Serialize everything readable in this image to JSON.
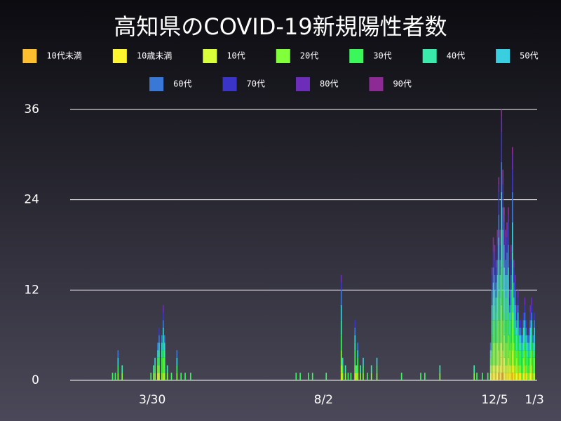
{
  "chart_data": {
    "type": "bar",
    "stacked": true,
    "title": "高知県のCOVID-19新規陽性者数",
    "x": [
      31,
      33,
      35,
      38,
      59,
      61,
      62,
      64,
      65,
      67,
      68,
      69,
      71,
      74,
      78,
      81,
      84,
      88,
      165,
      168,
      174,
      177,
      187,
      198,
      199,
      201,
      203,
      205,
      208,
      209,
      210,
      212,
      214,
      217,
      220,
      224,
      242,
      256,
      259,
      270,
      295,
      297,
      301,
      305,
      307,
      308,
      309,
      310,
      311,
      312,
      313,
      314,
      315,
      316,
      317,
      318,
      319,
      320,
      321,
      322,
      323,
      324,
      325,
      326,
      327,
      328,
      329,
      330,
      331,
      332,
      333,
      334,
      335,
      336,
      337,
      338,
      339
    ],
    "xlim": [
      0,
      341
    ],
    "xticks": [
      {
        "value": 60,
        "label": "3/30"
      },
      {
        "value": 185,
        "label": "8/2"
      },
      {
        "value": 310,
        "label": "12/5"
      },
      {
        "value": 339,
        "label": "1/3"
      }
    ],
    "ylim": [
      0,
      36
    ],
    "yticks": [
      0,
      12,
      24,
      36
    ],
    "grid": true,
    "series": [
      {
        "name": "10代未満",
        "color": "#fdbf2d",
        "values": [
          0,
          0,
          0,
          0,
          0,
          0,
          0,
          0,
          0,
          0,
          0,
          0,
          0,
          0,
          0,
          0,
          0,
          0,
          0,
          0,
          0,
          0,
          0,
          0,
          0,
          0,
          0,
          0,
          0,
          0,
          0,
          0,
          0,
          0,
          0,
          0,
          0,
          0,
          0,
          0,
          0,
          0,
          0,
          0,
          0,
          0,
          0,
          0,
          0,
          0,
          1,
          0,
          1,
          1,
          0,
          0,
          0,
          0,
          0,
          0,
          1,
          0,
          0,
          0,
          0,
          0,
          0,
          0,
          0,
          0,
          0,
          0,
          0,
          0,
          0,
          0,
          0
        ]
      },
      {
        "name": "10歳未満",
        "color": "#fdf52d",
        "values": [
          0,
          0,
          0,
          0,
          0,
          0,
          0,
          0,
          0,
          0,
          0,
          0,
          0,
          0,
          0,
          0,
          0,
          0,
          0,
          0,
          0,
          0,
          0,
          1,
          0,
          0,
          0,
          0,
          1,
          0,
          0,
          0,
          0,
          0,
          0,
          0,
          0,
          0,
          0,
          0,
          0,
          0,
          0,
          0,
          0,
          1,
          1,
          1,
          1,
          1,
          1,
          1,
          2,
          1,
          1,
          1,
          1,
          1,
          1,
          1,
          1,
          1,
          1,
          0,
          1,
          1,
          1,
          0,
          0,
          1,
          1,
          0,
          0,
          0,
          1,
          0,
          0
        ]
      },
      {
        "name": "10代",
        "color": "#d9ff3a",
        "values": [
          0,
          0,
          0,
          0,
          0,
          0,
          0,
          1,
          1,
          0,
          1,
          0,
          0,
          0,
          0,
          0,
          0,
          0,
          0,
          0,
          0,
          0,
          0,
          1,
          0,
          0,
          0,
          0,
          0,
          0,
          1,
          0,
          0,
          0,
          0,
          0,
          0,
          0,
          0,
          0,
          0,
          0,
          0,
          0,
          1,
          1,
          1,
          1,
          1,
          1,
          2,
          1,
          2,
          2,
          2,
          1,
          1,
          2,
          1,
          1,
          2,
          1,
          1,
          1,
          1,
          0,
          0,
          0,
          1,
          1,
          0,
          0,
          1,
          1,
          1,
          0,
          1
        ]
      },
      {
        "name": "20代",
        "color": "#80ff3a",
        "values": [
          0,
          0,
          1,
          1,
          0,
          1,
          1,
          1,
          1,
          1,
          2,
          1,
          1,
          0,
          1,
          0,
          0,
          0,
          0,
          0,
          0,
          0,
          0,
          2,
          1,
          1,
          0,
          0,
          1,
          1,
          1,
          1,
          1,
          0,
          1,
          1,
          0,
          0,
          0,
          1,
          1,
          0,
          0,
          0,
          1,
          2,
          3,
          3,
          3,
          3,
          4,
          3,
          5,
          4,
          3,
          3,
          3,
          3,
          2,
          3,
          5,
          3,
          2,
          2,
          2,
          1,
          1,
          1,
          2,
          2,
          1,
          1,
          1,
          2,
          2,
          1,
          2
        ]
      },
      {
        "name": "30代",
        "color": "#3af75a",
        "values": [
          1,
          1,
          1,
          0,
          1,
          0,
          1,
          1,
          1,
          2,
          1,
          2,
          0,
          1,
          1,
          1,
          1,
          1,
          1,
          1,
          1,
          1,
          1,
          2,
          1,
          0,
          1,
          1,
          2,
          0,
          1,
          0,
          1,
          1,
          0,
          1,
          1,
          1,
          1,
          0,
          0,
          1,
          1,
          1,
          1,
          2,
          3,
          3,
          2,
          3,
          4,
          3,
          5,
          4,
          3,
          3,
          3,
          3,
          2,
          3,
          4,
          2,
          2,
          1,
          2,
          2,
          2,
          2,
          1,
          1,
          2,
          2,
          1,
          1,
          1,
          2,
          1
        ]
      },
      {
        "name": "40代",
        "color": "#3aeaaa",
        "values": [
          0,
          0,
          0,
          1,
          0,
          1,
          0,
          0,
          1,
          1,
          2,
          1,
          1,
          0,
          0,
          0,
          0,
          0,
          0,
          0,
          0,
          0,
          0,
          2,
          0,
          1,
          0,
          0,
          1,
          1,
          0,
          1,
          0,
          0,
          1,
          0,
          0,
          0,
          0,
          1,
          1,
          0,
          0,
          0,
          0,
          2,
          3,
          2,
          2,
          3,
          4,
          3,
          5,
          4,
          3,
          3,
          3,
          3,
          2,
          2,
          4,
          2,
          2,
          2,
          2,
          1,
          1,
          1,
          1,
          2,
          1,
          1,
          1,
          2,
          2,
          1,
          1
        ]
      },
      {
        "name": "50代",
        "color": "#3acfe0",
        "values": [
          0,
          0,
          1,
          0,
          0,
          0,
          1,
          1,
          1,
          1,
          1,
          1,
          0,
          0,
          1,
          0,
          0,
          0,
          0,
          0,
          0,
          0,
          0,
          2,
          1,
          0,
          0,
          0,
          1,
          0,
          1,
          0,
          1,
          0,
          0,
          1,
          0,
          0,
          0,
          0,
          0,
          0,
          0,
          0,
          1,
          2,
          2,
          2,
          2,
          3,
          3,
          3,
          5,
          4,
          3,
          3,
          3,
          3,
          1,
          2,
          4,
          2,
          2,
          1,
          1,
          1,
          1,
          1,
          2,
          1,
          1,
          1,
          1,
          1,
          1,
          1,
          2
        ]
      },
      {
        "name": "60代",
        "color": "#3a78d8",
        "values": [
          0,
          0,
          1,
          0,
          0,
          0,
          0,
          1,
          1,
          1,
          1,
          1,
          0,
          0,
          1,
          0,
          0,
          0,
          0,
          0,
          0,
          0,
          0,
          2,
          0,
          0,
          0,
          0,
          1,
          0,
          1,
          0,
          0,
          0,
          0,
          0,
          0,
          0,
          0,
          0,
          0,
          0,
          0,
          0,
          1,
          2,
          2,
          2,
          2,
          2,
          3,
          2,
          4,
          3,
          3,
          2,
          3,
          3,
          1,
          2,
          4,
          2,
          2,
          1,
          1,
          1,
          1,
          1,
          1,
          1,
          1,
          1,
          1,
          1,
          1,
          1,
          1
        ]
      },
      {
        "name": "70代",
        "color": "#3a35c8",
        "values": [
          0,
          0,
          0,
          0,
          0,
          0,
          0,
          0,
          1,
          0,
          1,
          0,
          0,
          0,
          0,
          0,
          0,
          0,
          0,
          0,
          0,
          0,
          0,
          1,
          0,
          0,
          0,
          0,
          1,
          0,
          0,
          0,
          0,
          0,
          0,
          0,
          0,
          0,
          0,
          0,
          0,
          0,
          0,
          0,
          0,
          2,
          2,
          2,
          2,
          2,
          3,
          2,
          4,
          3,
          3,
          2,
          2,
          3,
          1,
          2,
          3,
          2,
          1,
          1,
          1,
          1,
          1,
          0,
          1,
          1,
          1,
          0,
          1,
          1,
          1,
          0,
          1
        ]
      },
      {
        "name": "80代",
        "color": "#6c2db8",
        "values": [
          0,
          0,
          0,
          0,
          0,
          0,
          0,
          0,
          0,
          0,
          1,
          0,
          0,
          0,
          0,
          0,
          0,
          0,
          0,
          0,
          0,
          0,
          0,
          1,
          0,
          0,
          0,
          0,
          0,
          0,
          0,
          0,
          0,
          0,
          0,
          0,
          0,
          0,
          0,
          0,
          0,
          0,
          0,
          0,
          0,
          1,
          1,
          1,
          1,
          1,
          1,
          1,
          2,
          1,
          1,
          1,
          1,
          1,
          1,
          1,
          2,
          1,
          1,
          1,
          1,
          0,
          0,
          0,
          0,
          1,
          0,
          0,
          0,
          1,
          1,
          0,
          0
        ]
      },
      {
        "name": "90代",
        "color": "#8e2a96",
        "values": [
          0,
          0,
          0,
          0,
          0,
          0,
          0,
          0,
          0,
          0,
          0,
          0,
          0,
          0,
          0,
          0,
          0,
          0,
          0,
          0,
          0,
          0,
          0,
          0,
          0,
          0,
          0,
          0,
          0,
          0,
          0,
          0,
          0,
          0,
          0,
          0,
          0,
          0,
          0,
          0,
          0,
          0,
          0,
          0,
          0,
          0,
          1,
          1,
          0,
          1,
          1,
          1,
          1,
          1,
          1,
          1,
          1,
          1,
          0,
          1,
          1,
          0,
          0,
          0,
          0,
          0,
          0,
          0,
          0,
          0,
          0,
          0,
          0,
          0,
          0,
          0,
          0
        ]
      }
    ]
  }
}
